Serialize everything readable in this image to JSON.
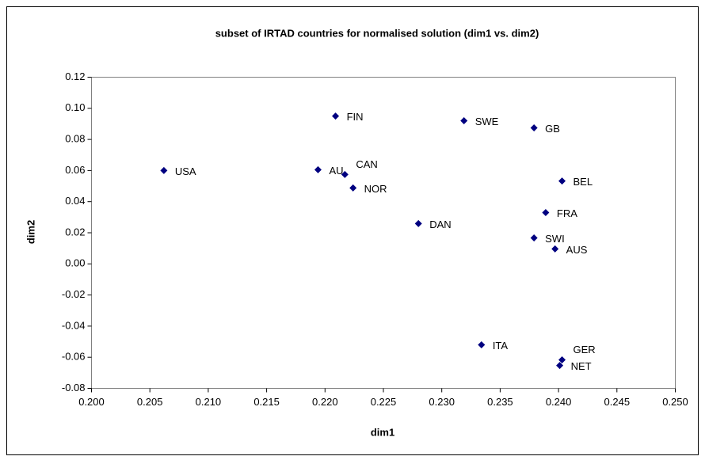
{
  "chart_data": {
    "type": "scatter",
    "title": "subset of IRTAD countries for normalised solution (dim1 vs. dim2)",
    "x_label": "dim1",
    "y_label": "dim2",
    "series": [
      {
        "color": "#000080",
        "labels": [
          "USA",
          "FIN",
          "AU",
          "CAN",
          "NOR",
          "DAN",
          "SWE",
          "GB",
          "BEL",
          "FRA",
          "SWI",
          "AUS",
          "ITA",
          "GER",
          "NET"
        ],
        "x": [
          0.2062,
          0.2209,
          0.2194,
          0.2217,
          0.2224,
          0.228,
          0.2319,
          0.2379,
          0.2403,
          0.2389,
          0.2379,
          0.2397,
          0.2334,
          0.2403,
          0.2401
        ],
        "values": [
          0.06,
          0.095,
          0.0605,
          0.0575,
          0.0488,
          0.0259,
          0.092,
          0.0874,
          0.0533,
          0.033,
          0.0167,
          0.0096,
          -0.052,
          -0.0617,
          -0.0653
        ]
      }
    ],
    "xlim": [
      0.2,
      0.25
    ],
    "xticks": [
      {
        "value": 0.2,
        "label": "0.200"
      },
      {
        "value": 0.205,
        "label": "0.205"
      },
      {
        "value": 0.21,
        "label": "0.210"
      },
      {
        "value": 0.215,
        "label": "0.215"
      },
      {
        "value": 0.22,
        "label": "0.220"
      },
      {
        "value": 0.225,
        "label": "0.225"
      },
      {
        "value": 0.23,
        "label": "0.230"
      },
      {
        "value": 0.235,
        "label": "0.235"
      },
      {
        "value": 0.24,
        "label": "0.240"
      },
      {
        "value": 0.245,
        "label": "0.245"
      },
      {
        "value": 0.25,
        "label": "0.250"
      }
    ],
    "ylim": [
      -0.08,
      0.12
    ],
    "yticks": [
      {
        "value": -0.08,
        "label": "-0.08"
      },
      {
        "value": -0.06,
        "label": "-0.06"
      },
      {
        "value": -0.04,
        "label": "-0.04"
      },
      {
        "value": -0.02,
        "label": "-0.02"
      },
      {
        "value": 0,
        "label": "0.00"
      },
      {
        "value": 0.02,
        "label": "0.02"
      },
      {
        "value": 0.04,
        "label": "0.04"
      },
      {
        "value": 0.06,
        "label": "0.06"
      },
      {
        "value": 0.08,
        "label": "0.08"
      },
      {
        "value": 0.1,
        "label": "0.10"
      },
      {
        "value": 0.12,
        "label": "0.12"
      }
    ]
  }
}
